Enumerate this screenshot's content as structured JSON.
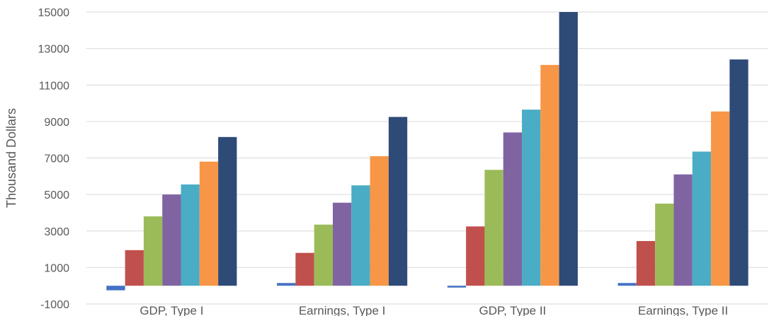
{
  "chart_data": {
    "type": "bar",
    "ylabel": "Thousand Dollars",
    "ylim": [
      -1000,
      15000
    ],
    "yticks": [
      -1000,
      1000,
      3000,
      5000,
      7000,
      9000,
      11000,
      13000,
      15000
    ],
    "grid": true,
    "categories": [
      "GDP, Type I",
      "Earnings, Type I",
      "GDP, Type II",
      "Earnings, Type II"
    ],
    "series": [
      {
        "color": "#4472c4",
        "values": [
          -250,
          150,
          -100,
          150
        ]
      },
      {
        "color": "#c0504d",
        "values": [
          1950,
          1800,
          3250,
          2450
        ]
      },
      {
        "color": "#9bbb59",
        "values": [
          3800,
          3350,
          6350,
          4500
        ]
      },
      {
        "color": "#8064a2",
        "values": [
          5000,
          4550,
          8400,
          6100
        ]
      },
      {
        "color": "#4bacc6",
        "values": [
          5550,
          5500,
          9650,
          7350
        ]
      },
      {
        "color": "#f79646",
        "values": [
          6800,
          7100,
          12100,
          9550
        ]
      },
      {
        "color": "#2e4a77",
        "values": [
          8150,
          9250,
          15000,
          12400
        ]
      }
    ]
  }
}
